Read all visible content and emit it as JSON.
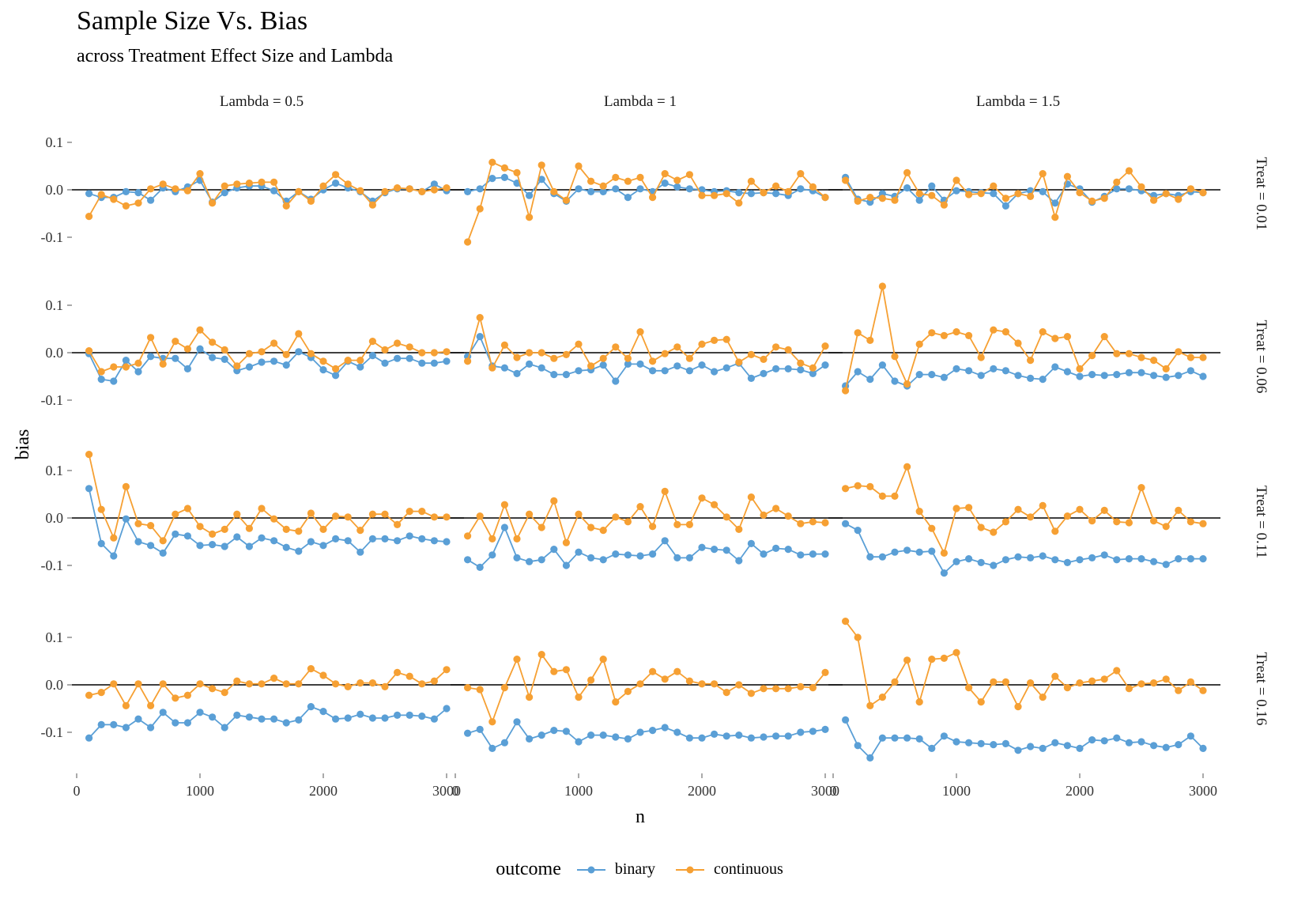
{
  "header": {
    "title": "Sample Size Vs. Bias",
    "subtitle": "across Treatment Effect Size and Lambda"
  },
  "legend": {
    "title": "outcome",
    "items": [
      {
        "label": "binary",
        "color": "#5a9fd6"
      },
      {
        "label": "continuous",
        "color": "#f6a033"
      }
    ]
  },
  "chart_data": {
    "type": "line",
    "title": "Sample Size Vs. Bias",
    "subtitle": "across Treatment Effect Size and Lambda",
    "xlabel": "n",
    "ylabel": "bias",
    "xlim": [
      0,
      3000
    ],
    "ylim": [
      -0.17,
      0.15
    ],
    "xticks": [
      0,
      1000,
      2000,
      3000
    ],
    "xtick_labels": [
      "0",
      "1000",
      "2000",
      "3000"
    ],
    "yticks": [
      0.1,
      0.0,
      -0.1
    ],
    "ytick_labels": [
      "0.1",
      "0.0",
      "-0.1"
    ],
    "reference_line": 0,
    "grid": false,
    "legend_position": "bottom",
    "columns": [
      "Lambda = 0.5",
      "Lambda = 1",
      "Lambda = 1.5"
    ],
    "rows": [
      "Treat = 0.01",
      "Treat = 0.06",
      "Treat = 0.11",
      "Treat = 0.16"
    ],
    "x": [
      100,
      200,
      300,
      400,
      500,
      600,
      700,
      800,
      900,
      1000,
      1100,
      1200,
      1300,
      1400,
      1500,
      1600,
      1700,
      1800,
      1900,
      2000,
      2100,
      2200,
      2300,
      2400,
      2500,
      2600,
      2700,
      2800,
      2900,
      3000
    ],
    "series_names": [
      "binary",
      "continuous"
    ],
    "colors": [
      "#5a9fd6",
      "#f6a033"
    ],
    "panels": [
      {
        "row": 0,
        "col": 0,
        "binary": [
          -0.008,
          -0.016,
          -0.016,
          -0.004,
          -0.006,
          -0.022,
          0.004,
          -0.004,
          0.006,
          0.02,
          -0.026,
          -0.006,
          0.004,
          0.008,
          0.008,
          -0.002,
          -0.024,
          -0.004,
          -0.02,
          0.0,
          0.014,
          0.004,
          -0.004,
          -0.024,
          -0.006,
          0.002,
          0.002,
          -0.004,
          0.012,
          -0.002
        ],
        "continuous": [
          -0.056,
          -0.01,
          -0.02,
          -0.034,
          -0.028,
          0.002,
          0.012,
          0.002,
          -0.002,
          0.034,
          -0.028,
          0.008,
          0.012,
          0.014,
          0.016,
          0.016,
          -0.034,
          -0.004,
          -0.024,
          0.008,
          0.032,
          0.012,
          -0.002,
          -0.032,
          -0.004,
          0.004,
          0.002,
          -0.004,
          0.0,
          0.004
        ]
      },
      {
        "row": 0,
        "col": 1,
        "binary": [
          -0.004,
          0.002,
          0.024,
          0.026,
          0.014,
          -0.012,
          0.022,
          -0.008,
          -0.024,
          0.002,
          -0.004,
          -0.004,
          0.002,
          -0.016,
          0.002,
          -0.004,
          0.014,
          0.006,
          0.002,
          0.0,
          -0.004,
          -0.002,
          -0.006,
          -0.008,
          -0.006,
          -0.008,
          -0.012,
          0.002,
          -0.002,
          -0.016
        ],
        "continuous": [
          -0.11,
          -0.04,
          0.058,
          0.046,
          0.036,
          -0.058,
          0.052,
          -0.004,
          -0.022,
          0.05,
          0.018,
          0.008,
          0.026,
          0.018,
          0.026,
          -0.016,
          0.034,
          0.02,
          0.032,
          -0.012,
          -0.012,
          -0.008,
          -0.028,
          0.018,
          -0.006,
          0.008,
          -0.004,
          0.034,
          0.006,
          -0.016
        ]
      },
      {
        "row": 0,
        "col": 2,
        "binary": [
          0.026,
          -0.02,
          -0.026,
          -0.008,
          -0.014,
          0.004,
          -0.022,
          0.008,
          -0.022,
          -0.002,
          -0.004,
          -0.006,
          -0.008,
          -0.034,
          -0.008,
          -0.002,
          -0.004,
          -0.028,
          0.012,
          0.002,
          -0.026,
          -0.014,
          0.002,
          0.002,
          -0.002,
          -0.012,
          -0.008,
          -0.012,
          -0.004,
          -0.006
        ],
        "continuous": [
          0.02,
          -0.024,
          -0.016,
          -0.018,
          -0.022,
          0.036,
          -0.008,
          -0.012,
          -0.032,
          0.02,
          -0.01,
          -0.008,
          0.008,
          -0.018,
          -0.008,
          -0.014,
          0.034,
          -0.058,
          0.028,
          -0.006,
          -0.024,
          -0.018,
          0.016,
          0.04,
          0.006,
          -0.022,
          -0.008,
          -0.02,
          0.002,
          -0.006
        ]
      },
      {
        "row": 1,
        "col": 0,
        "binary": [
          -0.002,
          -0.056,
          -0.06,
          -0.016,
          -0.04,
          -0.008,
          -0.012,
          -0.012,
          -0.034,
          0.008,
          -0.01,
          -0.014,
          -0.038,
          -0.03,
          -0.02,
          -0.018,
          -0.026,
          0.002,
          -0.01,
          -0.036,
          -0.048,
          -0.018,
          -0.03,
          -0.006,
          -0.022,
          -0.012,
          -0.012,
          -0.022,
          -0.022,
          -0.018
        ],
        "continuous": [
          0.004,
          -0.04,
          -0.03,
          -0.03,
          -0.022,
          0.032,
          -0.024,
          0.024,
          0.008,
          0.048,
          0.022,
          0.006,
          -0.028,
          -0.002,
          0.002,
          0.02,
          -0.004,
          0.04,
          -0.002,
          -0.018,
          -0.034,
          -0.016,
          -0.016,
          0.024,
          0.006,
          0.02,
          0.012,
          0.0,
          0.0,
          0.002
        ]
      },
      {
        "row": 1,
        "col": 1,
        "binary": [
          -0.008,
          0.034,
          -0.028,
          -0.032,
          -0.044,
          -0.024,
          -0.032,
          -0.046,
          -0.046,
          -0.038,
          -0.036,
          -0.026,
          -0.06,
          -0.024,
          -0.024,
          -0.038,
          -0.038,
          -0.028,
          -0.038,
          -0.026,
          -0.04,
          -0.032,
          -0.022,
          -0.054,
          -0.044,
          -0.034,
          -0.034,
          -0.036,
          -0.044,
          -0.026
        ],
        "continuous": [
          -0.018,
          0.074,
          -0.032,
          0.016,
          -0.01,
          0.0,
          0.0,
          -0.012,
          -0.004,
          0.018,
          -0.028,
          -0.012,
          0.012,
          -0.012,
          0.044,
          -0.018,
          -0.002,
          0.012,
          -0.012,
          0.018,
          0.026,
          0.028,
          -0.02,
          -0.004,
          -0.014,
          0.012,
          0.006,
          -0.022,
          -0.032,
          0.014
        ]
      },
      {
        "row": 1,
        "col": 2,
        "binary": [
          -0.07,
          -0.04,
          -0.056,
          -0.026,
          -0.06,
          -0.07,
          -0.046,
          -0.046,
          -0.052,
          -0.034,
          -0.038,
          -0.048,
          -0.034,
          -0.038,
          -0.048,
          -0.054,
          -0.056,
          -0.03,
          -0.04,
          -0.05,
          -0.046,
          -0.048,
          -0.046,
          -0.042,
          -0.042,
          -0.048,
          -0.052,
          -0.048,
          -0.038,
          -0.05
        ],
        "continuous": [
          -0.08,
          0.042,
          0.026,
          0.14,
          -0.008,
          -0.066,
          0.018,
          0.042,
          0.036,
          0.044,
          0.036,
          -0.01,
          0.048,
          0.044,
          0.02,
          -0.016,
          0.044,
          0.03,
          0.034,
          -0.034,
          -0.006,
          0.034,
          -0.002,
          -0.002,
          -0.01,
          -0.016,
          -0.034,
          0.002,
          -0.01,
          -0.01
        ]
      },
      {
        "row": 2,
        "col": 0,
        "binary": [
          0.062,
          -0.054,
          -0.08,
          -0.002,
          -0.05,
          -0.058,
          -0.074,
          -0.034,
          -0.038,
          -0.058,
          -0.056,
          -0.06,
          -0.04,
          -0.06,
          -0.042,
          -0.048,
          -0.062,
          -0.07,
          -0.05,
          -0.058,
          -0.044,
          -0.048,
          -0.072,
          -0.044,
          -0.044,
          -0.048,
          -0.038,
          -0.044,
          -0.048,
          -0.05
        ],
        "continuous": [
          0.134,
          0.018,
          -0.042,
          0.066,
          -0.012,
          -0.016,
          -0.048,
          0.008,
          0.02,
          -0.018,
          -0.034,
          -0.024,
          0.008,
          -0.022,
          0.02,
          -0.002,
          -0.024,
          -0.028,
          0.01,
          -0.024,
          0.004,
          0.002,
          -0.026,
          0.008,
          0.008,
          -0.014,
          0.014,
          0.014,
          0.002,
          0.002
        ]
      },
      {
        "row": 2,
        "col": 1,
        "binary": [
          -0.088,
          -0.104,
          -0.078,
          -0.02,
          -0.084,
          -0.092,
          -0.088,
          -0.066,
          -0.1,
          -0.072,
          -0.084,
          -0.088,
          -0.076,
          -0.078,
          -0.08,
          -0.076,
          -0.048,
          -0.084,
          -0.084,
          -0.062,
          -0.066,
          -0.068,
          -0.09,
          -0.054,
          -0.076,
          -0.064,
          -0.066,
          -0.078,
          -0.076,
          -0.076
        ],
        "continuous": [
          -0.038,
          0.004,
          -0.044,
          0.028,
          -0.044,
          0.008,
          -0.02,
          0.036,
          -0.052,
          0.008,
          -0.02,
          -0.026,
          0.002,
          -0.008,
          0.024,
          -0.018,
          0.056,
          -0.014,
          -0.014,
          0.042,
          0.028,
          0.002,
          -0.024,
          0.044,
          0.006,
          0.02,
          0.004,
          -0.012,
          -0.008,
          -0.01
        ]
      },
      {
        "row": 2,
        "col": 2,
        "binary": [
          -0.012,
          -0.026,
          -0.082,
          -0.082,
          -0.072,
          -0.068,
          -0.072,
          -0.07,
          -0.116,
          -0.092,
          -0.086,
          -0.094,
          -0.1,
          -0.088,
          -0.082,
          -0.084,
          -0.08,
          -0.088,
          -0.094,
          -0.088,
          -0.084,
          -0.078,
          -0.088,
          -0.086,
          -0.086,
          -0.092,
          -0.098,
          -0.086,
          -0.086,
          -0.086
        ],
        "continuous": [
          0.062,
          0.068,
          0.066,
          0.046,
          0.046,
          0.108,
          0.014,
          -0.022,
          -0.074,
          0.02,
          0.022,
          -0.02,
          -0.03,
          -0.008,
          0.018,
          0.002,
          0.026,
          -0.028,
          0.004,
          0.018,
          -0.006,
          0.016,
          -0.008,
          -0.01,
          0.064,
          -0.006,
          -0.018,
          0.016,
          -0.008,
          -0.012
        ]
      },
      {
        "row": 3,
        "col": 0,
        "binary": [
          -0.112,
          -0.084,
          -0.084,
          -0.09,
          -0.072,
          -0.09,
          -0.058,
          -0.08,
          -0.08,
          -0.058,
          -0.068,
          -0.09,
          -0.064,
          -0.068,
          -0.072,
          -0.072,
          -0.08,
          -0.074,
          -0.046,
          -0.056,
          -0.072,
          -0.07,
          -0.062,
          -0.07,
          -0.07,
          -0.064,
          -0.064,
          -0.066,
          -0.072,
          -0.05
        ],
        "continuous": [
          -0.022,
          -0.016,
          0.002,
          -0.044,
          0.002,
          -0.044,
          0.002,
          -0.028,
          -0.022,
          0.002,
          -0.008,
          -0.016,
          0.008,
          0.002,
          0.002,
          0.014,
          0.002,
          0.002,
          0.034,
          0.02,
          0.002,
          -0.004,
          0.004,
          0.004,
          -0.004,
          0.026,
          0.018,
          0.002,
          0.008,
          0.032
        ]
      },
      {
        "row": 3,
        "col": 1,
        "binary": [
          -0.102,
          -0.094,
          -0.134,
          -0.122,
          -0.078,
          -0.114,
          -0.106,
          -0.096,
          -0.098,
          -0.12,
          -0.106,
          -0.106,
          -0.11,
          -0.114,
          -0.1,
          -0.096,
          -0.09,
          -0.1,
          -0.112,
          -0.112,
          -0.104,
          -0.108,
          -0.106,
          -0.112,
          -0.11,
          -0.108,
          -0.108,
          -0.1,
          -0.098,
          -0.094
        ],
        "continuous": [
          -0.006,
          -0.01,
          -0.078,
          -0.006,
          0.054,
          -0.026,
          0.064,
          0.028,
          0.032,
          -0.026,
          0.01,
          0.054,
          -0.036,
          -0.014,
          0.002,
          0.028,
          0.012,
          0.028,
          0.008,
          0.002,
          0.002,
          -0.016,
          0.0,
          -0.018,
          -0.008,
          -0.008,
          -0.008,
          -0.004,
          -0.006,
          0.026
        ]
      },
      {
        "row": 3,
        "col": 2,
        "binary": [
          -0.074,
          -0.128,
          -0.154,
          -0.112,
          -0.112,
          -0.112,
          -0.114,
          -0.134,
          -0.108,
          -0.12,
          -0.122,
          -0.124,
          -0.126,
          -0.124,
          -0.138,
          -0.13,
          -0.134,
          -0.122,
          -0.128,
          -0.134,
          -0.116,
          -0.118,
          -0.112,
          -0.122,
          -0.12,
          -0.128,
          -0.132,
          -0.126,
          -0.108,
          -0.134
        ],
        "continuous": [
          0.134,
          0.1,
          -0.044,
          -0.026,
          0.006,
          0.052,
          -0.036,
          0.054,
          0.056,
          0.068,
          -0.006,
          -0.036,
          0.006,
          0.006,
          -0.046,
          0.004,
          -0.026,
          0.018,
          -0.006,
          0.004,
          0.008,
          0.012,
          0.03,
          -0.008,
          0.002,
          0.004,
          0.012,
          -0.012,
          0.006,
          -0.012
        ]
      }
    ]
  }
}
